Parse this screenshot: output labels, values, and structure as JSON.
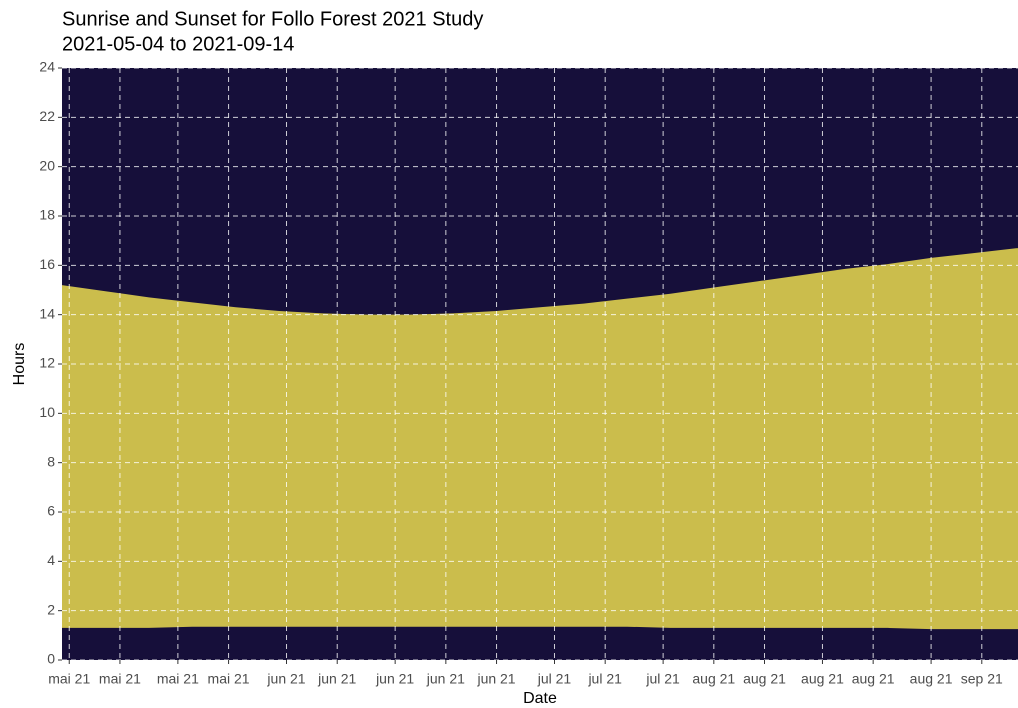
{
  "chart_data": {
    "type": "ribbon",
    "title": "Sunrise and Sunset for Follo Forest 2021 Study",
    "subtitle": "2021-05-04 to 2021-09-14",
    "x_label": "Date",
    "y_label": "Hours",
    "x": [
      0,
      6,
      12,
      18,
      24,
      30,
      36,
      42,
      48,
      54,
      60,
      66,
      72,
      78,
      84,
      90,
      96,
      102,
      108,
      114,
      120,
      126,
      132
    ],
    "series": [
      {
        "color": "#160f3a",
        "values": [
          1.3,
          1.3,
          1.3,
          1.35,
          1.35,
          1.35,
          1.35,
          1.35,
          1.35,
          1.35,
          1.35,
          1.35,
          1.35,
          1.35,
          1.3,
          1.3,
          1.3,
          1.3,
          1.3,
          1.3,
          1.25,
          1.25,
          1.25
        ]
      },
      {
        "color": "#160f3a",
        "values": [
          15.2,
          14.95,
          14.7,
          14.5,
          14.3,
          14.15,
          14.05,
          14.0,
          14.0,
          14.05,
          14.15,
          14.3,
          14.45,
          14.65,
          14.85,
          15.1,
          15.35,
          15.6,
          15.85,
          16.05,
          16.3,
          16.5,
          16.7
        ]
      }
    ],
    "fill_color": "#cbbd4c",
    "background_color": "#160f3a",
    "xlim": [
      0,
      132
    ],
    "xticks": [
      {
        "value": 1,
        "label": "mai 21"
      },
      {
        "value": 8,
        "label": "mai 21"
      },
      {
        "value": 16,
        "label": "mai 21"
      },
      {
        "value": 23,
        "label": "mai 21"
      },
      {
        "value": 31,
        "label": "jun 21"
      },
      {
        "value": 38,
        "label": "jun 21"
      },
      {
        "value": 46,
        "label": "jun 21"
      },
      {
        "value": 53,
        "label": "jun 21"
      },
      {
        "value": 60,
        "label": "jun 21"
      },
      {
        "value": 68,
        "label": "jul 21"
      },
      {
        "value": 75,
        "label": "jul 21"
      },
      {
        "value": 83,
        "label": "jul 21"
      },
      {
        "value": 90,
        "label": "aug 21"
      },
      {
        "value": 97,
        "label": "aug 21"
      },
      {
        "value": 105,
        "label": "aug 21"
      },
      {
        "value": 112,
        "label": "aug 21"
      },
      {
        "value": 120,
        "label": "aug 21"
      },
      {
        "value": 127,
        "label": "sep 21"
      }
    ],
    "ylim": [
      0,
      24
    ],
    "yticks": [
      0,
      2,
      4,
      6,
      8,
      10,
      12,
      14,
      16,
      18,
      20,
      22,
      24
    ],
    "grid": true
  }
}
